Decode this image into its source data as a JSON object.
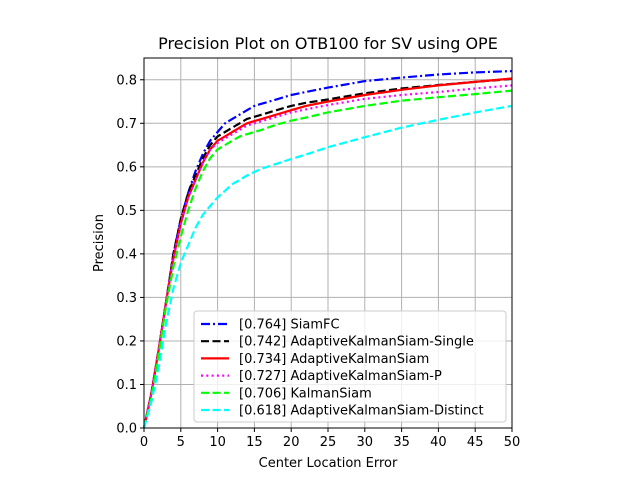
{
  "chart_data": {
    "type": "line",
    "title": "Precision Plot on OTB100 for SV using OPE",
    "xlabel": "Center Location Error",
    "ylabel": "Precision",
    "xlim": [
      0,
      50
    ],
    "ylim": [
      0,
      0.85
    ],
    "xticks": [
      0,
      5,
      10,
      15,
      20,
      25,
      30,
      35,
      40,
      45,
      50
    ],
    "yticks": [
      0.0,
      0.1,
      0.2,
      0.3,
      0.4,
      0.5,
      0.6,
      0.7,
      0.8
    ],
    "xtick_labels": [
      "0",
      "5",
      "10",
      "15",
      "20",
      "25",
      "30",
      "35",
      "40",
      "45",
      "50"
    ],
    "ytick_labels": [
      "0.0",
      "0.1",
      "0.2",
      "0.3",
      "0.4",
      "0.5",
      "0.6",
      "0.7",
      "0.8"
    ],
    "grid": true,
    "legend_position": "lower-right",
    "series": [
      {
        "name": "[0.764] SiamFC",
        "color": "#0000ff",
        "style": "dashdot",
        "x": [
          0,
          1,
          2,
          3,
          4,
          5,
          6,
          7,
          8,
          9,
          10,
          11,
          12,
          13,
          14,
          15,
          16,
          18,
          20,
          22,
          25,
          30,
          35,
          40,
          45,
          50
        ],
        "y": [
          0.0,
          0.08,
          0.18,
          0.29,
          0.4,
          0.48,
          0.54,
          0.59,
          0.63,
          0.66,
          0.68,
          0.7,
          0.71,
          0.72,
          0.73,
          0.74,
          0.745,
          0.755,
          0.765,
          0.772,
          0.782,
          0.797,
          0.805,
          0.812,
          0.817,
          0.82
        ]
      },
      {
        "name": "[0.742] AdaptiveKalmanSiam-Single",
        "color": "#000000",
        "style": "dashed",
        "x": [
          0,
          1,
          2,
          3,
          4,
          5,
          6,
          7,
          8,
          9,
          10,
          11,
          12,
          13,
          14,
          15,
          16,
          18,
          20,
          22,
          25,
          30,
          35,
          40,
          45,
          50
        ],
        "y": [
          0.0,
          0.08,
          0.18,
          0.29,
          0.4,
          0.48,
          0.54,
          0.58,
          0.62,
          0.65,
          0.67,
          0.68,
          0.69,
          0.7,
          0.71,
          0.715,
          0.72,
          0.73,
          0.74,
          0.747,
          0.755,
          0.769,
          0.78,
          0.788,
          0.795,
          0.802
        ]
      },
      {
        "name": "[0.734] AdaptiveKalmanSiam",
        "color": "#ff0000",
        "style": "solid",
        "x": [
          0,
          1,
          2,
          3,
          4,
          5,
          6,
          7,
          8,
          9,
          10,
          11,
          12,
          13,
          14,
          15,
          16,
          18,
          20,
          22,
          25,
          30,
          35,
          40,
          45,
          50
        ],
        "y": [
          0.0,
          0.08,
          0.18,
          0.29,
          0.39,
          0.47,
          0.53,
          0.57,
          0.61,
          0.64,
          0.66,
          0.67,
          0.68,
          0.69,
          0.7,
          0.705,
          0.71,
          0.72,
          0.73,
          0.74,
          0.75,
          0.765,
          0.777,
          0.787,
          0.795,
          0.803
        ]
      },
      {
        "name": "[0.727] AdaptiveKalmanSiam-P",
        "color": "#ff00ff",
        "style": "dotted",
        "x": [
          0,
          1,
          2,
          3,
          4,
          5,
          6,
          7,
          8,
          9,
          10,
          11,
          12,
          13,
          14,
          15,
          16,
          18,
          20,
          22,
          25,
          30,
          35,
          40,
          45,
          50
        ],
        "y": [
          0.0,
          0.08,
          0.18,
          0.29,
          0.39,
          0.47,
          0.53,
          0.57,
          0.61,
          0.64,
          0.655,
          0.665,
          0.675,
          0.685,
          0.695,
          0.7,
          0.705,
          0.715,
          0.725,
          0.732,
          0.742,
          0.756,
          0.765,
          0.772,
          0.78,
          0.787
        ]
      },
      {
        "name": "[0.706] KalmanSiam",
        "color": "#00ff00",
        "style": "dashed",
        "x": [
          0,
          1,
          2,
          3,
          4,
          5,
          6,
          7,
          8,
          9,
          10,
          11,
          12,
          13,
          14,
          15,
          16,
          18,
          20,
          22,
          25,
          30,
          35,
          40,
          45,
          50
        ],
        "y": [
          0.0,
          0.07,
          0.17,
          0.28,
          0.37,
          0.44,
          0.5,
          0.55,
          0.59,
          0.62,
          0.64,
          0.65,
          0.66,
          0.67,
          0.675,
          0.68,
          0.685,
          0.697,
          0.706,
          0.713,
          0.725,
          0.74,
          0.752,
          0.76,
          0.767,
          0.775
        ]
      },
      {
        "name": "[0.618] AdaptiveKalmanSiam-Distinct",
        "color": "#00ffff",
        "style": "dashed",
        "x": [
          0,
          1,
          2,
          3,
          4,
          5,
          6,
          7,
          8,
          9,
          10,
          11,
          12,
          13,
          14,
          15,
          16,
          18,
          20,
          22,
          25,
          30,
          35,
          40,
          45,
          50
        ],
        "y": [
          0.0,
          0.06,
          0.14,
          0.24,
          0.32,
          0.38,
          0.42,
          0.46,
          0.49,
          0.51,
          0.53,
          0.545,
          0.56,
          0.57,
          0.58,
          0.588,
          0.596,
          0.607,
          0.618,
          0.628,
          0.645,
          0.668,
          0.69,
          0.708,
          0.725,
          0.74
        ]
      }
    ]
  }
}
